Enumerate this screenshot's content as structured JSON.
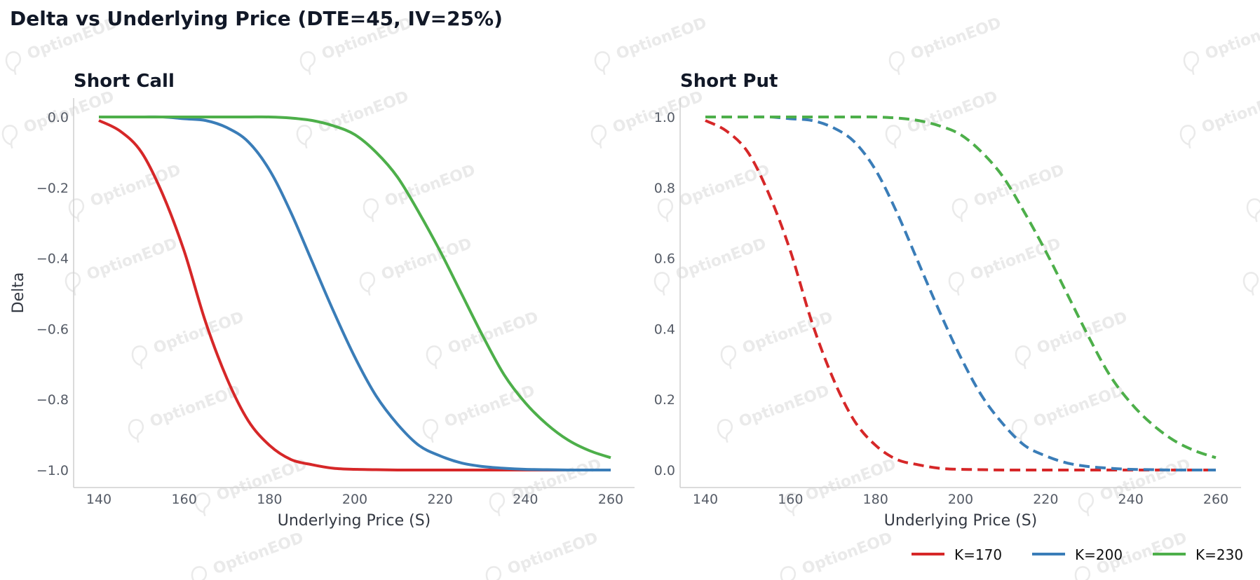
{
  "figure": {
    "title": "Delta vs Underlying Price (DTE=45, IV=25%)",
    "watermark": "OptionEOD"
  },
  "colors": {
    "K170": "#d62728",
    "K200": "#3a7db8",
    "K230": "#4daf4a"
  },
  "legend": {
    "placement": "bottom-right",
    "items": [
      {
        "label": "K=170",
        "color": "#d62728"
      },
      {
        "label": "K=200",
        "color": "#3a7db8"
      },
      {
        "label": "K=230",
        "color": "#4daf4a"
      }
    ]
  },
  "chart_data": [
    {
      "type": "line",
      "title": "Short Call",
      "xlabel": "Underlying Price (S)",
      "ylabel": "Delta",
      "xlim": [
        140,
        260
      ],
      "ylim": [
        -1.0,
        0.0
      ],
      "xticks": [
        140,
        160,
        180,
        200,
        220,
        240,
        260
      ],
      "yticks": [
        0.0,
        -0.2,
        -0.4,
        -0.6,
        -0.8,
        -1.0
      ],
      "ytick_labels": [
        "0.0",
        "−0.2",
        "−0.4",
        "−0.6",
        "−0.8",
        "−1.0"
      ],
      "grid": false,
      "linestyle": "solid",
      "x": [
        140,
        145,
        150,
        155,
        160,
        165,
        170,
        175,
        180,
        185,
        190,
        195,
        200,
        205,
        210,
        215,
        220,
        225,
        230,
        235,
        240,
        245,
        250,
        255,
        260
      ],
      "series": [
        {
          "name": "K=170",
          "color": "#d62728",
          "values": [
            -0.01,
            -0.04,
            -0.1,
            -0.22,
            -0.38,
            -0.58,
            -0.74,
            -0.86,
            -0.93,
            -0.97,
            -0.985,
            -0.995,
            -0.998,
            -0.999,
            -1.0,
            -1.0,
            -1.0,
            -1.0,
            -1.0,
            -1.0,
            -1.0,
            -1.0,
            -1.0,
            -1.0,
            -1.0
          ]
        },
        {
          "name": "K=200",
          "color": "#3a7db8",
          "values": [
            0.0,
            0.0,
            0.0,
            0.0,
            -0.005,
            -0.01,
            -0.03,
            -0.07,
            -0.15,
            -0.27,
            -0.41,
            -0.55,
            -0.68,
            -0.79,
            -0.87,
            -0.93,
            -0.96,
            -0.98,
            -0.99,
            -0.995,
            -0.998,
            -0.999,
            -1.0,
            -1.0,
            -1.0
          ]
        },
        {
          "name": "K=230",
          "color": "#4daf4a",
          "values": [
            0.0,
            0.0,
            0.0,
            0.0,
            0.0,
            0.0,
            0.0,
            0.0,
            0.0,
            -0.003,
            -0.01,
            -0.025,
            -0.05,
            -0.1,
            -0.17,
            -0.27,
            -0.38,
            -0.5,
            -0.62,
            -0.73,
            -0.81,
            -0.87,
            -0.915,
            -0.945,
            -0.965
          ]
        }
      ]
    },
    {
      "type": "line",
      "title": "Short Put",
      "xlabel": "Underlying Price (S)",
      "ylabel": "",
      "xlim": [
        140,
        260
      ],
      "ylim": [
        0.0,
        1.0
      ],
      "xticks": [
        140,
        160,
        180,
        200,
        220,
        240,
        260
      ],
      "yticks": [
        1.0,
        0.8,
        0.6,
        0.4,
        0.2,
        0.0
      ],
      "ytick_labels": [
        "1.0",
        "0.8",
        "0.6",
        "0.4",
        "0.2",
        "0.0"
      ],
      "grid": false,
      "linestyle": "dashed",
      "x": [
        140,
        145,
        150,
        155,
        160,
        165,
        170,
        175,
        180,
        185,
        190,
        195,
        200,
        205,
        210,
        215,
        220,
        225,
        230,
        235,
        240,
        245,
        250,
        255,
        260
      ],
      "series": [
        {
          "name": "K=170",
          "color": "#d62728",
          "values": [
            0.99,
            0.96,
            0.9,
            0.78,
            0.62,
            0.42,
            0.26,
            0.14,
            0.07,
            0.03,
            0.015,
            0.005,
            0.002,
            0.001,
            0.0,
            0.0,
            0.0,
            0.0,
            0.0,
            0.0,
            0.0,
            0.0,
            0.0,
            0.0,
            0.0
          ]
        },
        {
          "name": "K=200",
          "color": "#3a7db8",
          "values": [
            1.0,
            1.0,
            1.0,
            1.0,
            0.995,
            0.99,
            0.97,
            0.93,
            0.85,
            0.73,
            0.59,
            0.45,
            0.32,
            0.21,
            0.13,
            0.07,
            0.04,
            0.02,
            0.01,
            0.005,
            0.002,
            0.001,
            0.0,
            0.0,
            0.0
          ]
        },
        {
          "name": "K=230",
          "color": "#4daf4a",
          "values": [
            1.0,
            1.0,
            1.0,
            1.0,
            1.0,
            1.0,
            1.0,
            1.0,
            1.0,
            0.997,
            0.99,
            0.975,
            0.95,
            0.9,
            0.83,
            0.73,
            0.62,
            0.5,
            0.38,
            0.27,
            0.19,
            0.13,
            0.085,
            0.055,
            0.035
          ]
        }
      ]
    }
  ]
}
